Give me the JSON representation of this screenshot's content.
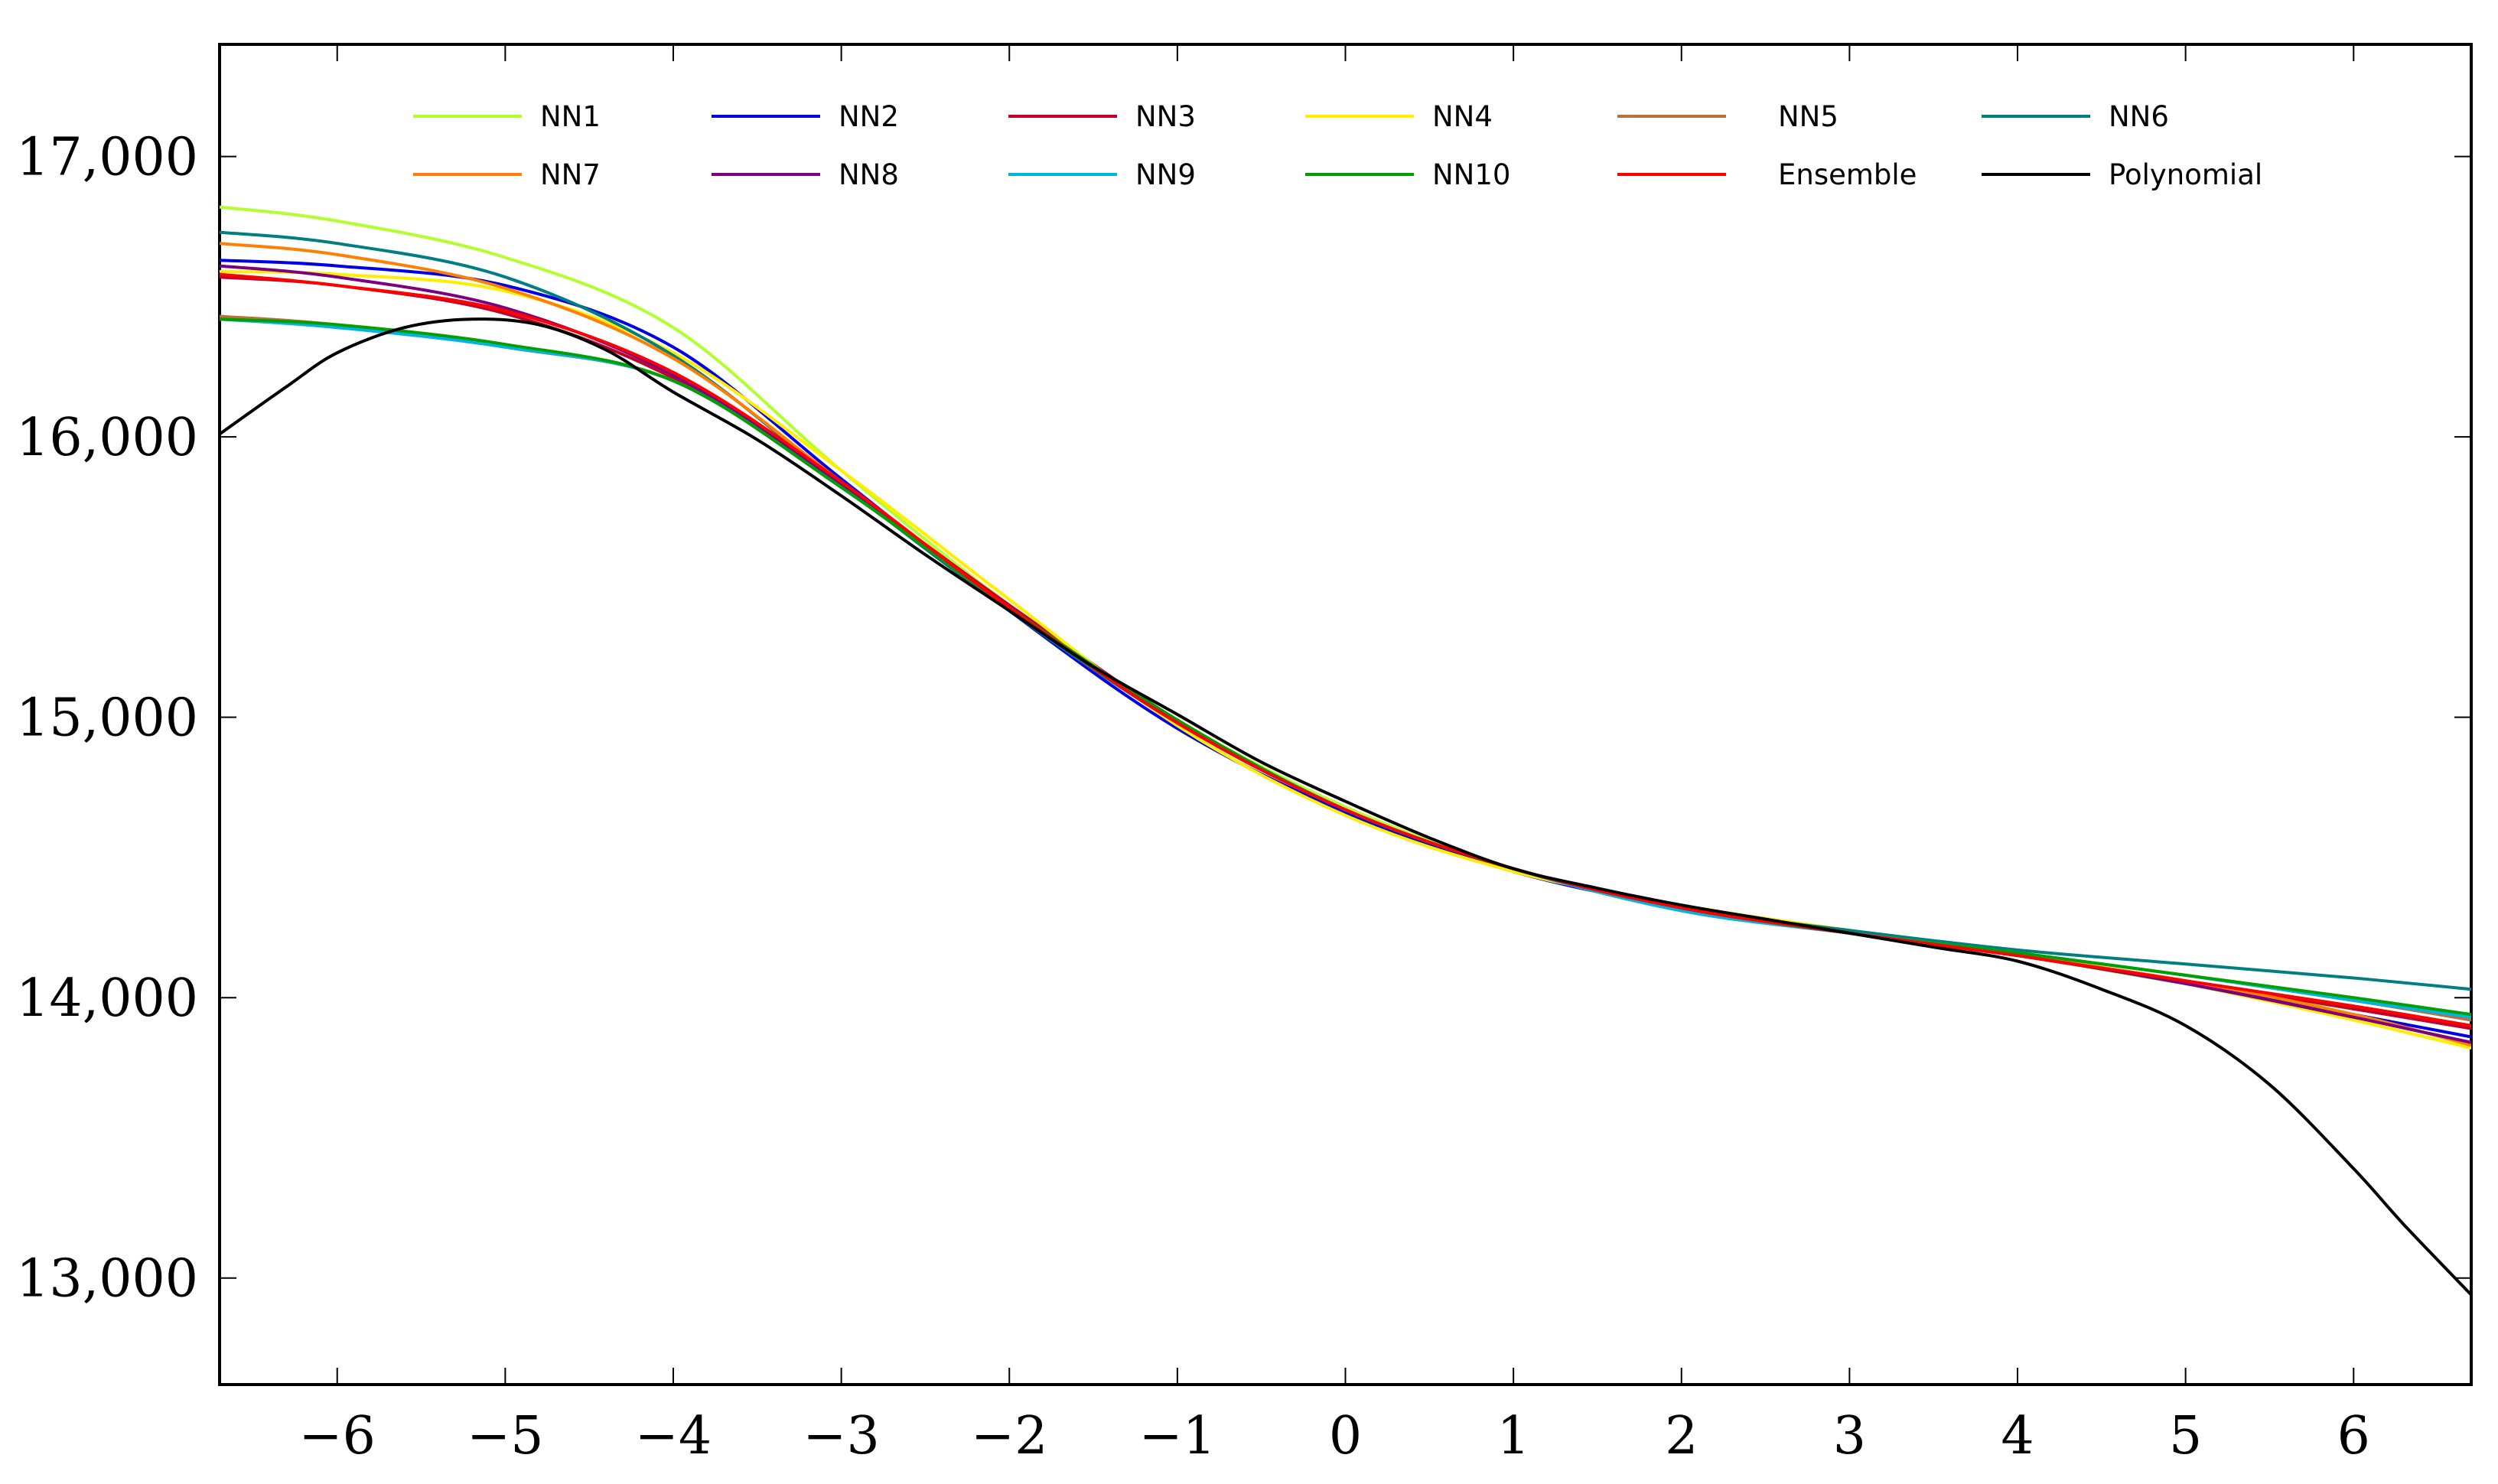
{
  "chart_data": {
    "type": "line",
    "title": "",
    "xlabel": "",
    "ylabel": "",
    "xlim": [
      -6.7,
      6.7
    ],
    "ylim": [
      12620,
      17400
    ],
    "x_ticks": [
      -6,
      -5,
      -4,
      -3,
      -2,
      -1,
      0,
      1,
      2,
      3,
      4,
      5,
      6
    ],
    "x_tick_labels": [
      "−6",
      "−5",
      "−4",
      "−3",
      "−2",
      "−1",
      "0",
      "1",
      "2",
      "3",
      "4",
      "5",
      "6"
    ],
    "y_ticks": [
      13000,
      14000,
      15000,
      16000,
      17000
    ],
    "y_tick_labels": [
      "13,000",
      "14,000",
      "15,000",
      "16,000",
      "17,000"
    ],
    "grid": false,
    "legend_position": "top",
    "legend_columns": 6,
    "series": [
      {
        "name": "NN1",
        "color": "#b2ff2e",
        "x": [
          -6.7,
          -6,
          -5,
          -4,
          -3,
          -2,
          -1,
          0,
          1,
          2,
          3,
          4,
          5,
          6,
          6.7
        ],
        "y": [
          16820,
          16770,
          16640,
          16390,
          15880,
          15400,
          14990,
          14680,
          14460,
          14320,
          14230,
          14150,
          14050,
          13960,
          13900
        ]
      },
      {
        "name": "NN2",
        "color": "#0000e6",
        "x": [
          -6.7,
          -6,
          -5,
          -4,
          -3,
          -2,
          -1,
          0,
          1,
          2,
          3,
          4,
          5,
          6,
          6.7
        ],
        "y": [
          16630,
          16610,
          16540,
          16320,
          15850,
          15380,
          14960,
          14660,
          14450,
          14320,
          14230,
          14150,
          14060,
          13940,
          13860
        ]
      },
      {
        "name": "NN3",
        "color": "#c4002a",
        "x": [
          -6.7,
          -6,
          -5,
          -4,
          -3,
          -2,
          -1,
          0,
          1,
          2,
          3,
          4,
          5,
          6,
          6.7
        ],
        "y": [
          16570,
          16540,
          16440,
          16210,
          15830,
          15400,
          14990,
          14670,
          14460,
          14320,
          14230,
          14150,
          14060,
          13960,
          13890
        ]
      },
      {
        "name": "NN4",
        "color": "#ffee00",
        "x": [
          -6.7,
          -6,
          -5,
          -4,
          -3,
          -2,
          -1,
          0,
          1,
          2,
          3,
          4,
          5,
          6,
          6.7
        ],
        "y": [
          16590,
          16580,
          16520,
          16300,
          15880,
          15420,
          14970,
          14650,
          14450,
          14330,
          14240,
          14160,
          14050,
          13920,
          13820
        ]
      },
      {
        "name": "NN5",
        "color": "#b8733a",
        "x": [
          -6.7,
          -6,
          -5,
          -4,
          -3,
          -2,
          -1,
          0,
          1,
          2,
          3,
          4,
          5,
          6,
          6.7
        ],
        "y": [
          16430,
          16400,
          16320,
          16200,
          15820,
          15390,
          14990,
          14670,
          14460,
          14320,
          14230,
          14160,
          14080,
          13990,
          13920
        ]
      },
      {
        "name": "NN6",
        "color": "#007f80",
        "x": [
          -6.7,
          -6,
          -5,
          -4,
          -3,
          -2,
          -1,
          0,
          1,
          2,
          3,
          4,
          5,
          6,
          6.7
        ],
        "y": [
          16730,
          16690,
          16570,
          16290,
          15830,
          15380,
          14980,
          14670,
          14460,
          14320,
          14240,
          14170,
          14120,
          14070,
          14030
        ]
      },
      {
        "name": "NN7",
        "color": "#ff8000",
        "x": [
          -6.7,
          -6,
          -5,
          -4,
          -3,
          -2,
          -1,
          0,
          1,
          2,
          3,
          4,
          5,
          6,
          6.7
        ],
        "y": [
          16690,
          16650,
          16530,
          16280,
          15840,
          15390,
          14980,
          14670,
          14460,
          14320,
          14230,
          14150,
          14060,
          13940,
          13830
        ]
      },
      {
        "name": "NN8",
        "color": "#7f007f",
        "x": [
          -6.7,
          -6,
          -5,
          -4,
          -3,
          -2,
          -1,
          0,
          1,
          2,
          3,
          4,
          5,
          6,
          6.7
        ],
        "y": [
          16610,
          16570,
          16460,
          16220,
          15830,
          15390,
          14980,
          14670,
          14460,
          14320,
          14230,
          14150,
          14050,
          13930,
          13840
        ]
      },
      {
        "name": "NN9",
        "color": "#00b4e6",
        "x": [
          -6.7,
          -6,
          -5,
          -4,
          -3,
          -2,
          -1,
          0,
          1,
          2,
          3,
          4,
          5,
          6,
          6.7
        ],
        "y": [
          16420,
          16390,
          16320,
          16200,
          15820,
          15390,
          14980,
          14670,
          14460,
          14310,
          14230,
          14160,
          14080,
          13990,
          13930
        ]
      },
      {
        "name": "NN10",
        "color": "#00a000",
        "x": [
          -6.7,
          -6,
          -5,
          -4,
          -3,
          -2,
          -1,
          0,
          1,
          2,
          3,
          4,
          5,
          6,
          6.7
        ],
        "y": [
          16420,
          16400,
          16330,
          16200,
          15820,
          15390,
          14990,
          14670,
          14460,
          14320,
          14230,
          14160,
          14080,
          14000,
          13940
        ]
      },
      {
        "name": "Ensemble",
        "color": "#ff0000",
        "x": [
          -6.7,
          -6,
          -5,
          -4,
          -3,
          -2,
          -1,
          0,
          1,
          2,
          3,
          4,
          5,
          6,
          6.7
        ],
        "y": [
          16580,
          16540,
          16450,
          16230,
          15840,
          15390,
          14980,
          14670,
          14460,
          14320,
          14230,
          14150,
          14060,
          13970,
          13900
        ]
      },
      {
        "name": "Polynomial",
        "color": "#000000",
        "x": [
          -6.7,
          -6.3,
          -6,
          -5.6,
          -5.2,
          -4.8,
          -4.4,
          -4,
          -3.5,
          -3,
          -2.5,
          -2,
          -1.5,
          -1,
          -0.5,
          0,
          0.5,
          1,
          1.5,
          2,
          2.5,
          3,
          3.5,
          4,
          4.5,
          5,
          5.5,
          6,
          6.3,
          6.7
        ],
        "y": [
          16010,
          16180,
          16300,
          16390,
          16420,
          16400,
          16310,
          16160,
          15990,
          15790,
          15580,
          15380,
          15180,
          15010,
          14840,
          14700,
          14570,
          14460,
          14390,
          14330,
          14280,
          14230,
          14180,
          14130,
          14030,
          13900,
          13690,
          13390,
          13190,
          12940
        ]
      }
    ]
  }
}
